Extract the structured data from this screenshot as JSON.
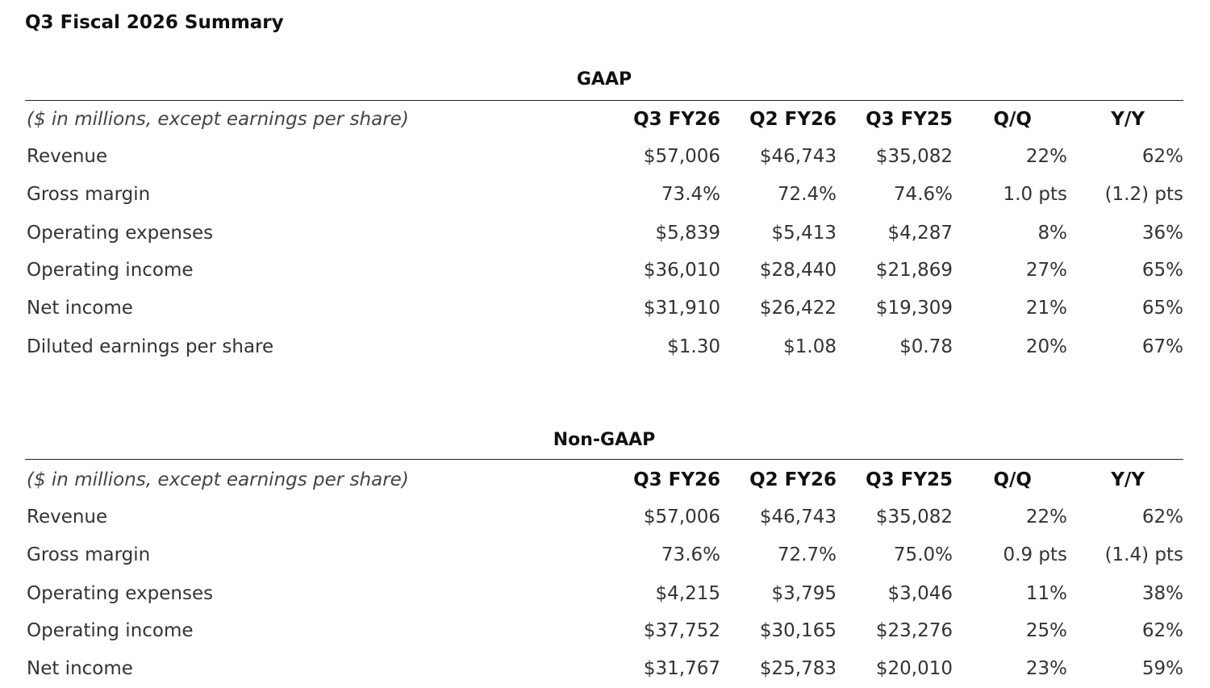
{
  "title": "Q3 Fiscal 2026 Summary",
  "gaap": {
    "title": "GAAP",
    "header": {
      "note": "($ in millions, except earnings per share)",
      "cols": [
        "Q3 FY26",
        "Q2 FY26",
        "Q3 FY25",
        "Q/Q",
        "Y/Y"
      ]
    },
    "rows": [
      {
        "label": "Revenue",
        "values": [
          "$57,006",
          "$46,743",
          "$35,082",
          "22%",
          "62%"
        ]
      },
      {
        "label": "Gross margin",
        "values": [
          "73.4%",
          "72.4%",
          "74.6%",
          "1.0 pts",
          "(1.2) pts"
        ]
      },
      {
        "label": "Operating expenses",
        "values": [
          "$5,839",
          "$5,413",
          "$4,287",
          "8%",
          "36%"
        ]
      },
      {
        "label": "Operating income",
        "values": [
          "$36,010",
          "$28,440",
          "$21,869",
          "27%",
          "65%"
        ]
      },
      {
        "label": "Net income",
        "values": [
          "$31,910",
          "$26,422",
          "$19,309",
          "21%",
          "65%"
        ]
      },
      {
        "label": "Diluted earnings per share",
        "values": [
          "$1.30",
          "$1.08",
          "$0.78",
          "20%",
          "67%"
        ]
      }
    ]
  },
  "nongaap": {
    "title": "Non-GAAP",
    "header": {
      "note": "($ in millions, except earnings per share)",
      "cols": [
        "Q3 FY26",
        "Q2 FY26",
        "Q3 FY25",
        "Q/Q",
        "Y/Y"
      ]
    },
    "rows": [
      {
        "label": "Revenue",
        "values": [
          "$57,006",
          "$46,743",
          "$35,082",
          "22%",
          "62%"
        ]
      },
      {
        "label": "Gross margin",
        "values": [
          "73.6%",
          "72.7%",
          "75.0%",
          "0.9 pts",
          "(1.4) pts"
        ]
      },
      {
        "label": "Operating expenses",
        "values": [
          "$4,215",
          "$3,795",
          "$3,046",
          "11%",
          "38%"
        ]
      },
      {
        "label": "Operating income",
        "values": [
          "$37,752",
          "$30,165",
          "$23,276",
          "25%",
          "62%"
        ]
      },
      {
        "label": "Net income",
        "values": [
          "$31,767",
          "$25,783",
          "$20,010",
          "23%",
          "59%"
        ]
      }
    ]
  }
}
